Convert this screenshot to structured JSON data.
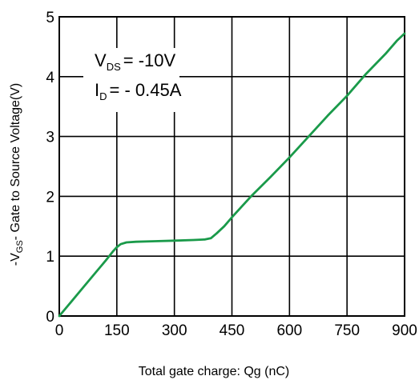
{
  "chart_data": {
    "type": "line",
    "title": "",
    "xlabel": "Total gate charge: Qg (nC)",
    "ylabel": {
      "prefix": "-V",
      "sub": "GS",
      "rest": "- Gate to Source Voltage(V)"
    },
    "xlim": [
      0,
      900
    ],
    "ylim": [
      0,
      5
    ],
    "x_ticks": [
      "0",
      "150",
      "300",
      "450",
      "600",
      "750",
      "900"
    ],
    "y_ticks": [
      "0",
      "1",
      "2",
      "3",
      "4",
      "5"
    ],
    "grid": true,
    "line_color": "#1a9a4a",
    "annotations": {
      "vds": {
        "main": "V",
        "sub": "DS",
        "value": "= -10V"
      },
      "id": {
        "main": "I",
        "sub": "D",
        "value": "= - 0.45A"
      }
    },
    "series": [
      {
        "x": [
          0,
          30,
          60,
          90,
          120,
          140,
          150,
          160,
          175,
          200,
          250,
          300,
          350,
          380,
          395,
          410,
          430,
          450,
          500,
          550,
          600,
          650,
          700,
          750,
          800,
          850,
          880,
          900
        ],
        "y": [
          0,
          0.23,
          0.46,
          0.69,
          0.92,
          1.08,
          1.15,
          1.2,
          1.23,
          1.24,
          1.25,
          1.26,
          1.27,
          1.28,
          1.3,
          1.38,
          1.5,
          1.65,
          2.0,
          2.32,
          2.65,
          3.0,
          3.35,
          3.68,
          4.05,
          4.38,
          4.6,
          4.72
        ]
      }
    ]
  }
}
